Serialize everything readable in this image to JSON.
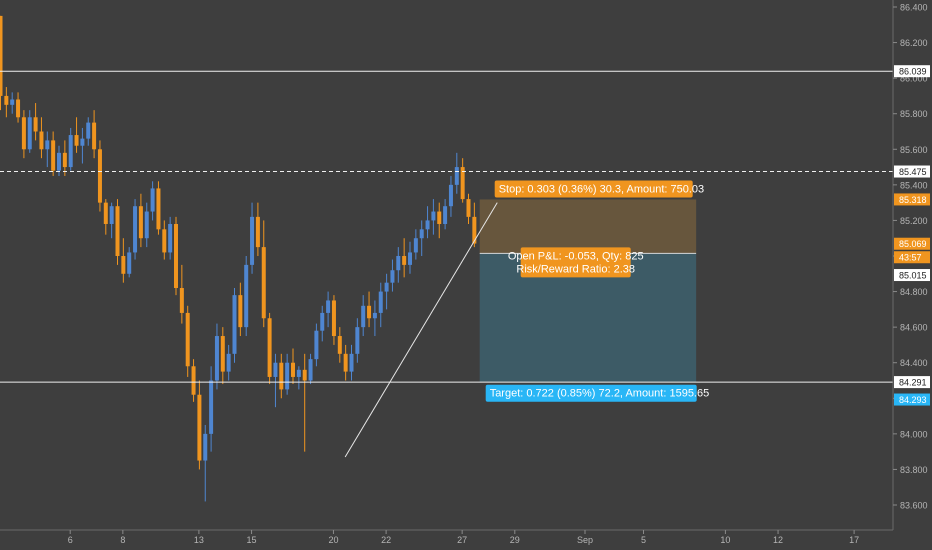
{
  "colors": {
    "background": "#3e3e3e",
    "up": "#4f86d1",
    "down": "#f0951f",
    "axis_text": "#b5b5b5",
    "stop_zone": "#6e5a3d",
    "target_zone": "#3d5e6a",
    "stop_label": "#f0951f",
    "target_label": "#29b6f6",
    "open_label": "#f0951f"
  },
  "chart_data": {
    "type": "candlestick",
    "symbol_scale": {
      "ylim": [
        83.5,
        86.5
      ],
      "y_ticks": [
        "86.400",
        "86.200",
        "86.000",
        "85.800",
        "85.600",
        "85.400",
        "85.200",
        "85.000",
        "84.800",
        "84.600",
        "84.400",
        "84.200",
        "84.000",
        "83.800",
        "83.600"
      ]
    },
    "x_ticks": [
      {
        "label": "6",
        "bar": 12
      },
      {
        "label": "8",
        "bar": 21
      },
      {
        "label": "13",
        "bar": 34
      },
      {
        "label": "15",
        "bar": 43
      },
      {
        "label": "20",
        "bar": 57
      },
      {
        "label": "22",
        "bar": 66
      },
      {
        "label": "27",
        "bar": 79
      },
      {
        "label": "29",
        "bar": 88
      },
      {
        "label": "Sep",
        "bar": 100
      },
      {
        "label": "5",
        "bar": 110
      },
      {
        "label": "10",
        "bar": 124
      },
      {
        "label": "12",
        "bar": 133
      },
      {
        "label": "17",
        "bar": 146
      }
    ],
    "candles": [
      [
        86.35,
        86.35,
        85.82,
        85.9
      ],
      [
        85.9,
        85.95,
        85.78,
        85.85
      ],
      [
        85.85,
        85.92,
        85.8,
        85.88
      ],
      [
        85.88,
        85.92,
        85.75,
        85.78
      ],
      [
        85.78,
        85.82,
        85.55,
        85.6
      ],
      [
        85.6,
        85.82,
        85.58,
        85.78
      ],
      [
        85.78,
        85.86,
        85.65,
        85.7
      ],
      [
        85.7,
        85.78,
        85.55,
        85.6
      ],
      [
        85.6,
        85.7,
        85.5,
        85.65
      ],
      [
        85.65,
        85.7,
        85.45,
        85.48
      ],
      [
        85.48,
        85.62,
        85.45,
        85.58
      ],
      [
        85.58,
        85.65,
        85.45,
        85.5
      ],
      [
        85.5,
        85.72,
        85.48,
        85.68
      ],
      [
        85.68,
        85.78,
        85.58,
        85.62
      ],
      [
        85.62,
        85.72,
        85.52,
        85.66
      ],
      [
        85.66,
        85.78,
        85.62,
        85.75
      ],
      [
        85.75,
        85.82,
        85.55,
        85.6
      ],
      [
        85.6,
        85.65,
        85.25,
        85.3
      ],
      [
        85.3,
        85.32,
        85.12,
        85.18
      ],
      [
        85.18,
        85.3,
        85.1,
        85.28
      ],
      [
        85.28,
        85.32,
        84.95,
        85.0
      ],
      [
        85.0,
        85.1,
        84.85,
        84.9
      ],
      [
        84.9,
        85.05,
        84.88,
        85.02
      ],
      [
        85.02,
        85.32,
        84.98,
        85.28
      ],
      [
        85.28,
        85.35,
        85.05,
        85.1
      ],
      [
        85.1,
        85.3,
        85.05,
        85.25
      ],
      [
        85.25,
        85.42,
        85.2,
        85.38
      ],
      [
        85.38,
        85.42,
        85.12,
        85.15
      ],
      [
        85.15,
        85.2,
        84.98,
        85.02
      ],
      [
        85.02,
        85.22,
        84.98,
        85.18
      ],
      [
        85.18,
        85.22,
        84.78,
        84.82
      ],
      [
        84.82,
        84.95,
        84.62,
        84.68
      ],
      [
        84.68,
        84.72,
        84.32,
        84.38
      ],
      [
        84.38,
        84.42,
        84.18,
        84.22
      ],
      [
        84.22,
        84.3,
        83.8,
        83.85
      ],
      [
        83.85,
        84.05,
        83.62,
        84.0
      ],
      [
        84.0,
        84.38,
        83.9,
        84.3
      ],
      [
        84.3,
        84.62,
        84.25,
        84.55
      ],
      [
        84.55,
        84.6,
        84.28,
        84.35
      ],
      [
        84.35,
        84.5,
        84.3,
        84.45
      ],
      [
        84.45,
        84.82,
        84.4,
        84.78
      ],
      [
        84.78,
        84.85,
        84.55,
        84.6
      ],
      [
        84.6,
        85.0,
        84.55,
        84.95
      ],
      [
        84.95,
        85.3,
        84.9,
        85.22
      ],
      [
        85.22,
        85.3,
        85.0,
        85.05
      ],
      [
        85.05,
        85.2,
        84.6,
        84.65
      ],
      [
        84.65,
        84.68,
        84.28,
        84.32
      ],
      [
        84.32,
        84.45,
        84.15,
        84.4
      ],
      [
        84.4,
        84.45,
        84.2,
        84.25
      ],
      [
        84.25,
        84.45,
        84.22,
        84.4
      ],
      [
        84.4,
        84.48,
        84.28,
        84.32
      ],
      [
        84.32,
        84.38,
        84.25,
        84.36
      ],
      [
        84.36,
        84.45,
        83.9,
        84.3
      ],
      [
        84.3,
        84.45,
        84.28,
        84.42
      ],
      [
        84.42,
        84.62,
        84.38,
        84.58
      ],
      [
        84.58,
        84.72,
        84.52,
        84.68
      ],
      [
        84.68,
        84.8,
        84.6,
        84.75
      ],
      [
        84.75,
        84.78,
        84.5,
        84.55
      ],
      [
        84.55,
        84.6,
        84.4,
        84.45
      ],
      [
        84.45,
        84.5,
        84.3,
        84.35
      ],
      [
        84.35,
        84.5,
        84.3,
        84.45
      ],
      [
        84.45,
        84.65,
        84.4,
        84.6
      ],
      [
        84.6,
        84.78,
        84.55,
        84.72
      ],
      [
        84.72,
        84.8,
        84.6,
        84.65
      ],
      [
        84.65,
        84.75,
        84.55,
        84.68
      ],
      [
        84.68,
        84.85,
        84.6,
        84.8
      ],
      [
        84.8,
        84.9,
        84.7,
        84.85
      ],
      [
        84.85,
        84.98,
        84.8,
        84.92
      ],
      [
        84.92,
        85.05,
        84.85,
        85.0
      ],
      [
        85.0,
        85.1,
        84.88,
        84.95
      ],
      [
        84.95,
        85.08,
        84.9,
        85.02
      ],
      [
        85.02,
        85.15,
        84.98,
        85.1
      ],
      [
        85.1,
        85.2,
        85.0,
        85.15
      ],
      [
        85.15,
        85.28,
        85.1,
        85.2
      ],
      [
        85.2,
        85.32,
        85.12,
        85.25
      ],
      [
        85.25,
        85.3,
        85.1,
        85.18
      ],
      [
        85.18,
        85.32,
        85.15,
        85.28
      ],
      [
        85.28,
        85.45,
        85.22,
        85.4
      ],
      [
        85.4,
        85.58,
        85.35,
        85.5
      ],
      [
        85.5,
        85.55,
        85.3,
        85.32
      ],
      [
        85.32,
        85.35,
        85.18,
        85.22
      ],
      [
        85.22,
        85.3,
        85.05,
        85.07
      ]
    ],
    "horizontal_lines": [
      {
        "price": 86.039,
        "style": "solid",
        "label": "86.039"
      },
      {
        "price": 85.475,
        "style": "dashed",
        "label": "85.475"
      },
      {
        "price": 84.291,
        "style": "solid",
        "label": "84.291"
      }
    ],
    "price_tags": [
      {
        "price": 85.318,
        "label": "85.318",
        "color": "#f0951f"
      },
      {
        "price": 85.069,
        "label": "85.069",
        "color": "#f0951f"
      },
      {
        "price": 84.993,
        "label": "43:57",
        "color": "#f0951f"
      },
      {
        "price": 84.893,
        "label": "85.015",
        "color": "#ffffff"
      },
      {
        "price": 84.193,
        "label": "84.293",
        "color": "#29b6f6"
      }
    ],
    "trendline": {
      "from": {
        "bar": 59,
        "price": 83.87
      },
      "to": {
        "bar": 85,
        "price": 85.3
      }
    },
    "position": {
      "entry_price": 85.015,
      "stop_price": 85.318,
      "target_price": 84.293,
      "start_bar": 82,
      "end_bar": 119,
      "stop_text": "Stop: 0.303 (0.36%) 30.3, Amount: 750.03",
      "open_text_1": "Open P&L: -0.053, Qty: 825",
      "open_text_2": "Risk/Reward Ratio: 2.38",
      "target_text": "Target: 0.722 (0.85%) 72.2, Amount: 1595.65"
    }
  }
}
